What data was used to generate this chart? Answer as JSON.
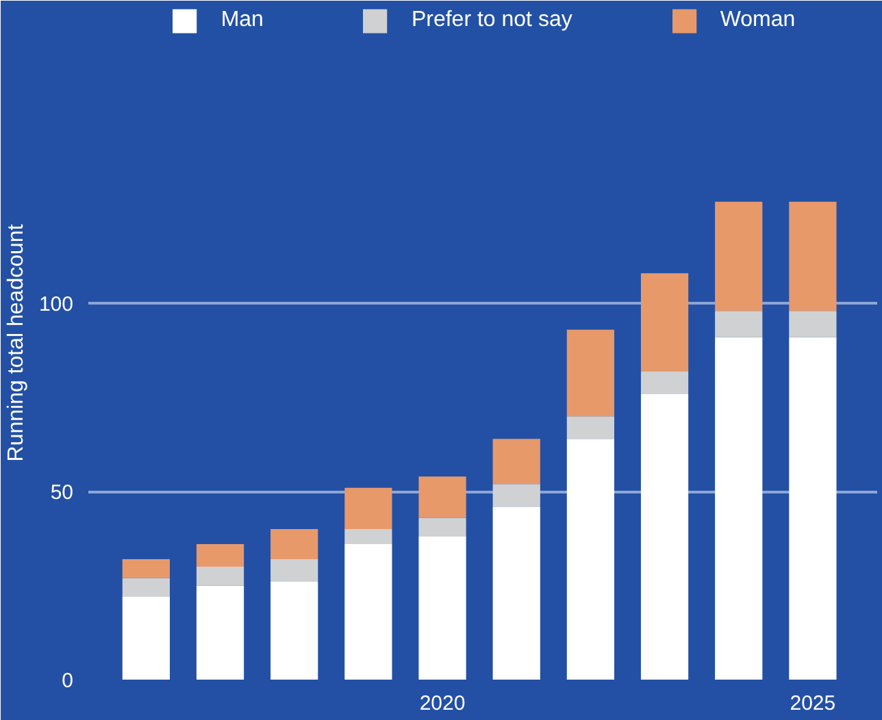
{
  "chart_data": {
    "type": "bar",
    "stacked": true,
    "ylabel": "Running total headcount",
    "x": [
      2016,
      2017,
      2018,
      2019,
      2020,
      2021,
      2022,
      2023,
      2024,
      2025
    ],
    "series": [
      {
        "name": "Man",
        "color": "#ffffff",
        "values": [
          22,
          25,
          26,
          36,
          38,
          46,
          64,
          76,
          91,
          91
        ]
      },
      {
        "name": "Prefer to not say",
        "color": "#d0d1d3",
        "values": [
          5,
          5,
          6,
          4,
          5,
          6,
          6,
          6,
          7,
          7
        ]
      },
      {
        "name": "Woman",
        "color": "#e8996a",
        "values": [
          5,
          6,
          8,
          11,
          11,
          12,
          23,
          26,
          29,
          29
        ]
      }
    ],
    "xlim": [
      2015.22,
      2025.87
    ],
    "xticks": [
      2020,
      2025
    ],
    "ylim": [
      0,
      179
    ],
    "yticks": [
      0,
      50,
      100
    ],
    "grid": "y",
    "legend": "top"
  }
}
